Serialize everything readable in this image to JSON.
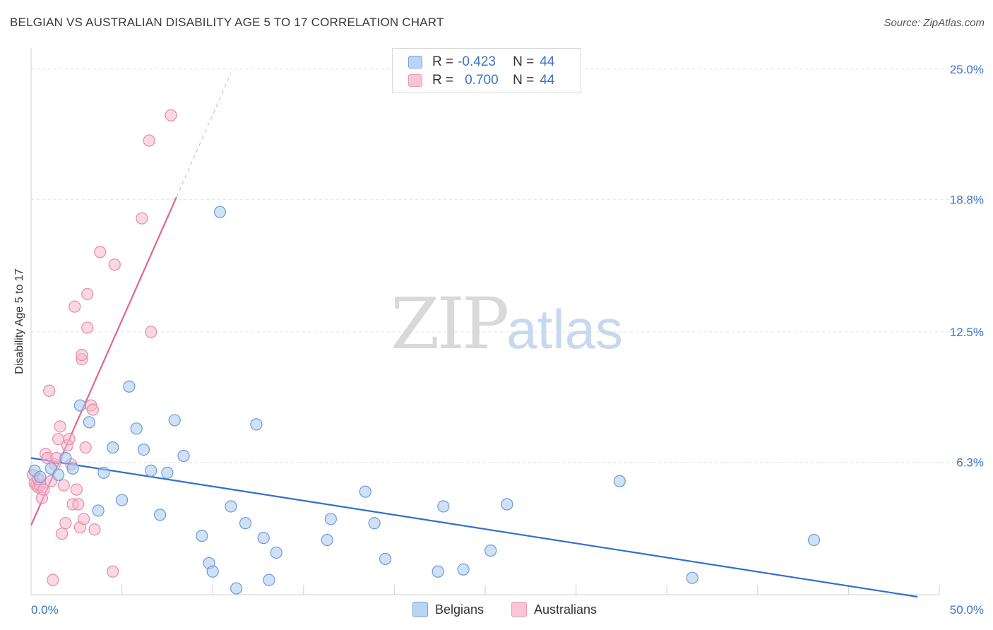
{
  "title": "BELGIAN VS AUSTRALIAN DISABILITY AGE 5 TO 17 CORRELATION CHART",
  "source": "Source: ZipAtlas.com",
  "legend": {
    "r_label": "R =",
    "n_label": "N =",
    "belgians": {
      "r": "-0.423",
      "n": "44"
    },
    "australians": {
      "r": "0.700",
      "n": "44"
    }
  },
  "watermark": {
    "zip": "ZIP",
    "atlas": "atlas"
  },
  "colors": {
    "belgian_fill": "#aac8ee",
    "belgian_stroke": "#6a9ad8",
    "belgian_line": "#2f6fcf",
    "australian_fill": "#f5b8cb",
    "australian_stroke": "#e88aa8",
    "australian_line": "#e0668f",
    "tick_label": "#3b73c8"
  },
  "chart_data": {
    "type": "scatter",
    "title": "BELGIAN VS AUSTRALIAN DISABILITY AGE 5 TO 17 CORRELATION CHART",
    "xlabel": "",
    "ylabel": "Disability Age 5 to 17",
    "xlim": [
      0,
      50
    ],
    "ylim": [
      0,
      26
    ],
    "x_tick_labels": [
      "0.0%",
      "50.0%"
    ],
    "y_ticks": [
      6.3,
      12.5,
      18.8,
      25.0
    ],
    "y_tick_labels": [
      "6.3%",
      "12.5%",
      "18.8%",
      "25.0%"
    ],
    "grid": true,
    "legend_position": "top-center",
    "series": [
      {
        "name": "Belgians",
        "points": [
          [
            0.2,
            5.9
          ],
          [
            0.5,
            5.6
          ],
          [
            1.1,
            6.0
          ],
          [
            1.5,
            5.7
          ],
          [
            1.9,
            6.5
          ],
          [
            2.3,
            6.0
          ],
          [
            2.7,
            9.0
          ],
          [
            3.2,
            8.2
          ],
          [
            3.7,
            4.0
          ],
          [
            4.0,
            5.8
          ],
          [
            4.5,
            7.0
          ],
          [
            5.0,
            4.5
          ],
          [
            5.4,
            9.9
          ],
          [
            5.8,
            7.9
          ],
          [
            6.2,
            6.9
          ],
          [
            6.6,
            5.9
          ],
          [
            7.1,
            3.8
          ],
          [
            7.5,
            5.8
          ],
          [
            7.9,
            8.3
          ],
          [
            8.4,
            6.6
          ],
          [
            9.4,
            2.8
          ],
          [
            9.8,
            1.5
          ],
          [
            10.0,
            1.1
          ],
          [
            10.4,
            18.2
          ],
          [
            11.0,
            4.2
          ],
          [
            11.3,
            0.3
          ],
          [
            11.8,
            3.4
          ],
          [
            12.4,
            8.1
          ],
          [
            12.8,
            2.7
          ],
          [
            13.1,
            0.7
          ],
          [
            13.5,
            2.0
          ],
          [
            16.3,
            2.6
          ],
          [
            16.5,
            3.6
          ],
          [
            18.4,
            4.9
          ],
          [
            18.9,
            3.4
          ],
          [
            19.5,
            1.7
          ],
          [
            22.4,
            1.1
          ],
          [
            22.7,
            4.2
          ],
          [
            23.8,
            1.2
          ],
          [
            25.3,
            2.1
          ],
          [
            26.2,
            4.3
          ],
          [
            32.4,
            5.4
          ],
          [
            36.4,
            0.8
          ],
          [
            43.1,
            2.6
          ]
        ],
        "trend": {
          "x": [
            0,
            48.8
          ],
          "y": [
            6.5,
            -0.1
          ]
        }
      },
      {
        "name": "Australians",
        "points": [
          [
            0.1,
            5.7
          ],
          [
            0.2,
            5.3
          ],
          [
            0.3,
            5.2
          ],
          [
            0.4,
            5.1
          ],
          [
            0.5,
            5.2
          ],
          [
            0.6,
            4.6
          ],
          [
            0.7,
            5.0
          ],
          [
            0.8,
            6.7
          ],
          [
            0.9,
            6.5
          ],
          [
            1.0,
            9.7
          ],
          [
            1.1,
            5.4
          ],
          [
            1.2,
            0.7
          ],
          [
            1.3,
            6.2
          ],
          [
            1.4,
            6.5
          ],
          [
            1.5,
            7.4
          ],
          [
            1.6,
            8.0
          ],
          [
            1.7,
            2.9
          ],
          [
            1.8,
            5.2
          ],
          [
            1.9,
            3.4
          ],
          [
            2.0,
            7.1
          ],
          [
            2.1,
            7.4
          ],
          [
            2.2,
            6.2
          ],
          [
            2.3,
            4.3
          ],
          [
            2.4,
            13.7
          ],
          [
            2.5,
            5.0
          ],
          [
            2.6,
            4.3
          ],
          [
            2.7,
            3.2
          ],
          [
            2.8,
            11.2
          ],
          [
            2.8,
            11.4
          ],
          [
            2.9,
            3.6
          ],
          [
            3.0,
            7.0
          ],
          [
            3.1,
            12.7
          ],
          [
            3.1,
            14.3
          ],
          [
            3.3,
            9.0
          ],
          [
            3.4,
            8.8
          ],
          [
            3.5,
            3.1
          ],
          [
            3.8,
            16.3
          ],
          [
            4.5,
            1.1
          ],
          [
            4.6,
            15.7
          ],
          [
            6.1,
            17.9
          ],
          [
            6.5,
            21.6
          ],
          [
            6.6,
            12.5
          ],
          [
            7.7,
            22.8
          ],
          [
            0.4,
            5.5
          ]
        ],
        "trend": {
          "x": [
            0,
            8.0
          ],
          "y": [
            3.3,
            18.9
          ]
        },
        "trend_dashed": {
          "x": [
            8.0,
            11.0
          ],
          "y": [
            18.9,
            24.8
          ]
        }
      }
    ]
  },
  "bottom_legend": {
    "belgians": "Belgians",
    "australians": "Australians"
  }
}
